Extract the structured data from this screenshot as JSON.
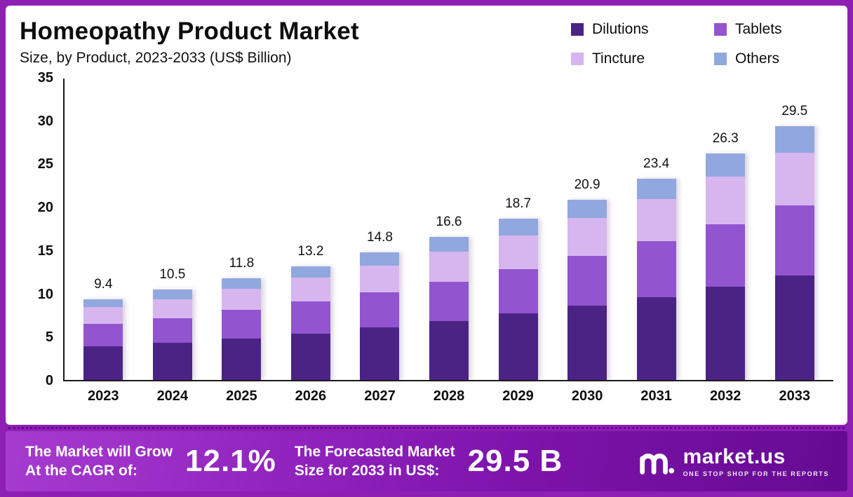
{
  "header": {
    "title": "Homeopathy Product Market",
    "subtitle": "Size, by Product, 2023-2033 (US$ Billion)"
  },
  "chart_data": {
    "type": "bar",
    "stacked": true,
    "title": "Homeopathy Product Market Size, by Product, 2023-2033 (US$ Billion)",
    "categories": [
      "2023",
      "2024",
      "2025",
      "2026",
      "2027",
      "2028",
      "2029",
      "2030",
      "2031",
      "2032",
      "2033"
    ],
    "series": [
      {
        "name": "Dilutions",
        "color": "#4b2385",
        "values": [
          3.9,
          4.3,
          4.8,
          5.4,
          6.1,
          6.8,
          7.7,
          8.6,
          9.6,
          10.8,
          12.1
        ]
      },
      {
        "name": "Tablets",
        "color": "#9254cf",
        "values": [
          2.6,
          2.9,
          3.3,
          3.7,
          4.1,
          4.6,
          5.2,
          5.8,
          6.5,
          7.3,
          8.2
        ]
      },
      {
        "name": "Tincture",
        "color": "#d7b6ef",
        "values": [
          2.0,
          2.2,
          2.5,
          2.8,
          3.1,
          3.5,
          3.9,
          4.4,
          4.9,
          5.5,
          6.1
        ]
      },
      {
        "name": "Others",
        "color": "#90a8dd",
        "values": [
          0.9,
          1.1,
          1.2,
          1.3,
          1.5,
          1.7,
          1.9,
          2.1,
          2.4,
          2.7,
          3.1
        ]
      }
    ],
    "totals": [
      9.4,
      10.5,
      11.8,
      13.2,
      14.8,
      16.6,
      18.7,
      20.9,
      23.4,
      26.3,
      29.5
    ],
    "ylim": [
      0,
      35
    ],
    "yticks": [
      0,
      5,
      10,
      15,
      20,
      25,
      30,
      35
    ],
    "grid": false,
    "legend_position": "top-right"
  },
  "footer": {
    "cagr_label": "The Market will Grow\nAt the CAGR of:",
    "cagr_value": "12.1%",
    "forecast_label": "The Forecasted Market\nSize for 2033 in US$:",
    "forecast_value": "29.5 B",
    "brand": "market.us",
    "brand_tagline": "ONE STOP SHOP FOR THE REPORTS"
  }
}
